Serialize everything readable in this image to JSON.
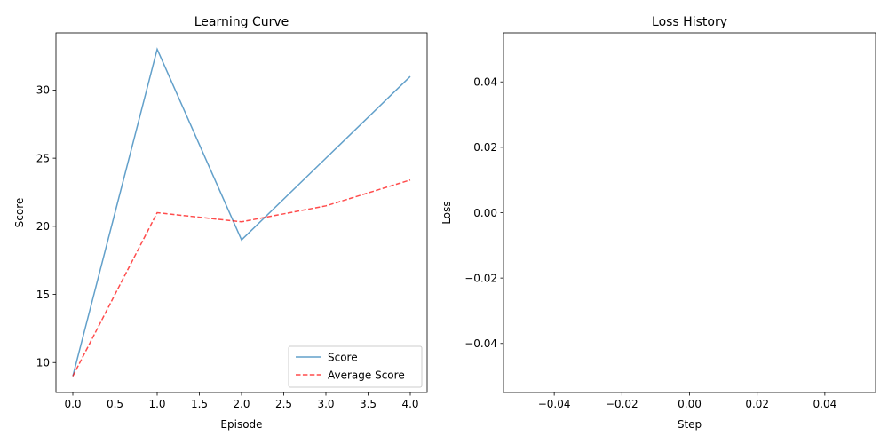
{
  "chart_data": [
    {
      "type": "line",
      "title": "Learning Curve",
      "xlabel": "Episode",
      "ylabel": "Score",
      "xlim": [
        -0.2,
        4.2
      ],
      "ylim": [
        7.8,
        34.2
      ],
      "xticks": [
        0.0,
        0.5,
        1.0,
        1.5,
        2.0,
        2.5,
        3.0,
        3.5,
        4.0
      ],
      "xtick_labels": [
        "0.0",
        "0.5",
        "1.0",
        "1.5",
        "2.0",
        "2.5",
        "3.0",
        "3.5",
        "4.0"
      ],
      "yticks": [
        10,
        15,
        20,
        25,
        30
      ],
      "ytick_labels": [
        "10",
        "15",
        "20",
        "25",
        "30"
      ],
      "x": [
        0,
        1,
        2,
        3,
        4
      ],
      "series": [
        {
          "name": "Score",
          "values": [
            9,
            33,
            19,
            25,
            31
          ],
          "color": "#1f77b4",
          "style": "solid",
          "alpha": 0.7
        },
        {
          "name": "Average Score",
          "values": [
            9,
            21,
            20.33,
            21.5,
            23.4
          ],
          "color": "#ff0000",
          "style": "dashed",
          "alpha": 0.7
        }
      ],
      "legend": "lower right",
      "grid": false
    },
    {
      "type": "line",
      "title": "Loss History",
      "xlabel": "Step",
      "ylabel": "Loss",
      "xlim": [
        -0.055,
        0.055
      ],
      "ylim": [
        -0.055,
        0.055
      ],
      "xticks": [
        -0.04,
        -0.02,
        0.0,
        0.02,
        0.04
      ],
      "xtick_labels": [
        "−0.04",
        "−0.02",
        "0.00",
        "0.02",
        "0.04"
      ],
      "yticks": [
        -0.04,
        -0.02,
        0.0,
        0.02,
        0.04
      ],
      "ytick_labels": [
        "−0.04",
        "−0.02",
        "0.00",
        "0.02",
        "0.04"
      ],
      "x": [],
      "series": [],
      "grid": false
    }
  ]
}
